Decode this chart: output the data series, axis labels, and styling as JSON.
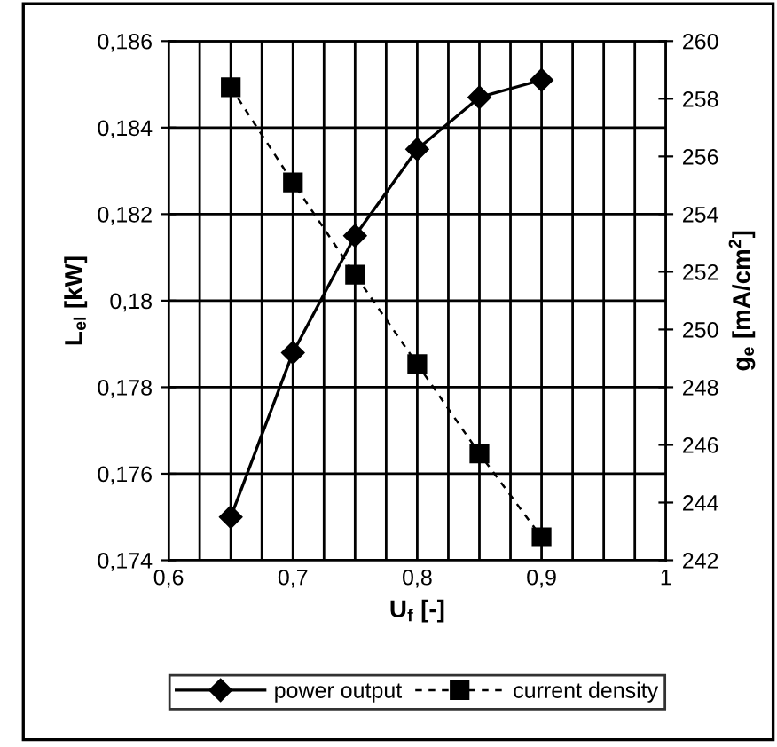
{
  "chart_data": {
    "type": "line",
    "xlabel": "U$_{f}$ [-]",
    "ylabel": "L$_{el}$ [kW]",
    "y2label": "g$_{e}$ [mA/cm$^{2}$]",
    "x": [
      0.65,
      0.7,
      0.75,
      0.8,
      0.85,
      0.9
    ],
    "series": [
      {
        "name": "power output",
        "color": "#000000",
        "marker": "diamond",
        "line_style": "solid",
        "values": [
          0.175,
          0.1788,
          0.1815,
          0.1835,
          0.1847,
          0.1851
        ]
      },
      {
        "name": "current density",
        "color": "#000000",
        "marker": "square",
        "line_style": "dashed",
        "axis": "y2",
        "values": [
          258.4,
          255.1,
          251.9,
          248.8,
          245.7,
          242.8
        ]
      }
    ],
    "xlim": [
      0.6,
      1
    ],
    "ylim": [
      0.174,
      0.186
    ],
    "y2lim": [
      242,
      260
    ],
    "xticks": [
      {
        "value": 0.6,
        "label": "0,6"
      },
      {
        "value": 0.625,
        "label": null
      },
      {
        "value": 0.65,
        "label": null
      },
      {
        "value": 0.675,
        "label": null
      },
      {
        "value": 0.7,
        "label": "0,7"
      },
      {
        "value": 0.725,
        "label": null
      },
      {
        "value": 0.75,
        "label": null
      },
      {
        "value": 0.775,
        "label": null
      },
      {
        "value": 0.8,
        "label": "0,8"
      },
      {
        "value": 0.825,
        "label": null
      },
      {
        "value": 0.85,
        "label": null
      },
      {
        "value": 0.875,
        "label": null
      },
      {
        "value": 0.9,
        "label": "0,9"
      },
      {
        "value": 0.925,
        "label": null
      },
      {
        "value": 0.95,
        "label": null
      },
      {
        "value": 0.975,
        "label": null
      },
      {
        "value": 1,
        "label": "1"
      }
    ],
    "yticks": [
      {
        "value": 0.174,
        "label": "0,174"
      },
      {
        "value": 0.176,
        "label": "0,176"
      },
      {
        "value": 0.178,
        "label": "0,178"
      },
      {
        "value": 0.18,
        "label": "0,18"
      },
      {
        "value": 0.182,
        "label": "0,182"
      },
      {
        "value": 0.184,
        "label": "0,184"
      },
      {
        "value": 0.186,
        "label": "0,186"
      }
    ],
    "y2ticks": [
      242,
      244,
      246,
      248,
      250,
      252,
      254,
      256,
      258,
      260
    ],
    "grid": true,
    "legend": "bottom"
  }
}
